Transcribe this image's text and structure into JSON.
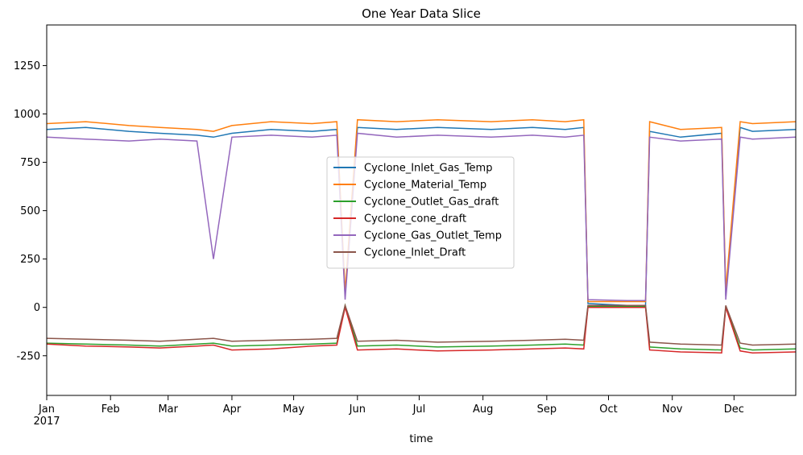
{
  "chart_data": {
    "type": "line",
    "title": "One Year Data Slice",
    "xlabel": "time",
    "ylabel": "",
    "xlim": [
      "2017-01-01",
      "2017-12-31"
    ],
    "ylim": [
      -455,
      1460
    ],
    "y_ticks": [
      -250,
      0,
      250,
      500,
      750,
      1000,
      1250
    ],
    "x_ticks": [
      {
        "date": "2017-01-01",
        "label": "Jan",
        "sublabel": "2017"
      },
      {
        "date": "2017-02-01",
        "label": "Feb"
      },
      {
        "date": "2017-03-01",
        "label": "Mar"
      },
      {
        "date": "2017-04-01",
        "label": "Apr"
      },
      {
        "date": "2017-05-01",
        "label": "May"
      },
      {
        "date": "2017-06-01",
        "label": "Jun"
      },
      {
        "date": "2017-07-01",
        "label": "Jul"
      },
      {
        "date": "2017-08-01",
        "label": "Aug"
      },
      {
        "date": "2017-09-01",
        "label": "Sep"
      },
      {
        "date": "2017-10-01",
        "label": "Oct"
      },
      {
        "date": "2017-11-01",
        "label": "Nov"
      },
      {
        "date": "2017-12-01",
        "label": "Dec"
      }
    ],
    "grid": false,
    "legend_position": "center",
    "series": [
      {
        "name": "Cyclone_Inlet_Gas_Temp",
        "color": "#1f77b4",
        "x": [
          "2017-01-01",
          "2017-01-20",
          "2017-02-10",
          "2017-02-25",
          "2017-03-15",
          "2017-03-23",
          "2017-04-01",
          "2017-04-20",
          "2017-05-10",
          "2017-05-22",
          "2017-05-26",
          "2017-06-01",
          "2017-06-20",
          "2017-07-10",
          "2017-08-05",
          "2017-08-25",
          "2017-09-10",
          "2017-09-19",
          "2017-09-21",
          "2017-10-10",
          "2017-10-19",
          "2017-10-21",
          "2017-11-05",
          "2017-11-25",
          "2017-11-27",
          "2017-12-04",
          "2017-12-10",
          "2017-12-31"
        ],
        "y": [
          920,
          930,
          910,
          900,
          890,
          880,
          900,
          920,
          910,
          920,
          60,
          930,
          920,
          930,
          920,
          930,
          920,
          930,
          20,
          10,
          10,
          910,
          880,
          900,
          60,
          930,
          910,
          920
        ]
      },
      {
        "name": "Cyclone_Material_Temp",
        "color": "#ff7f0e",
        "x": [
          "2017-01-01",
          "2017-01-20",
          "2017-02-10",
          "2017-02-25",
          "2017-03-15",
          "2017-03-23",
          "2017-04-01",
          "2017-04-20",
          "2017-05-10",
          "2017-05-22",
          "2017-05-26",
          "2017-06-01",
          "2017-06-20",
          "2017-07-10",
          "2017-08-05",
          "2017-08-25",
          "2017-09-10",
          "2017-09-19",
          "2017-09-21",
          "2017-10-10",
          "2017-10-19",
          "2017-10-21",
          "2017-11-05",
          "2017-11-25",
          "2017-11-27",
          "2017-12-04",
          "2017-12-10",
          "2017-12-31"
        ],
        "y": [
          950,
          960,
          940,
          930,
          920,
          910,
          940,
          960,
          950,
          960,
          80,
          970,
          960,
          970,
          960,
          970,
          960,
          970,
          30,
          30,
          30,
          960,
          920,
          930,
          90,
          960,
          950,
          960
        ]
      },
      {
        "name": "Cyclone_Outlet_Gas_draft",
        "color": "#2ca02c",
        "x": [
          "2017-01-01",
          "2017-01-20",
          "2017-02-10",
          "2017-02-25",
          "2017-03-15",
          "2017-03-23",
          "2017-04-01",
          "2017-04-20",
          "2017-05-10",
          "2017-05-22",
          "2017-05-26",
          "2017-06-01",
          "2017-06-20",
          "2017-07-10",
          "2017-08-05",
          "2017-08-25",
          "2017-09-10",
          "2017-09-19",
          "2017-09-21",
          "2017-10-10",
          "2017-10-19",
          "2017-10-21",
          "2017-11-05",
          "2017-11-25",
          "2017-11-27",
          "2017-12-04",
          "2017-12-10",
          "2017-12-31"
        ],
        "y": [
          -185,
          -190,
          -195,
          -200,
          -190,
          -185,
          -200,
          -195,
          -190,
          -185,
          10,
          -200,
          -195,
          -205,
          -200,
          -195,
          -190,
          -195,
          5,
          5,
          5,
          -205,
          -215,
          -220,
          5,
          -210,
          -220,
          -215
        ]
      },
      {
        "name": "Cyclone_cone_draft",
        "color": "#d62728",
        "x": [
          "2017-01-01",
          "2017-01-20",
          "2017-02-10",
          "2017-02-25",
          "2017-03-15",
          "2017-03-23",
          "2017-04-01",
          "2017-04-20",
          "2017-05-10",
          "2017-05-22",
          "2017-05-26",
          "2017-06-01",
          "2017-06-20",
          "2017-07-10",
          "2017-08-05",
          "2017-08-25",
          "2017-09-10",
          "2017-09-19",
          "2017-09-21",
          "2017-10-10",
          "2017-10-19",
          "2017-10-21",
          "2017-11-05",
          "2017-11-25",
          "2017-11-27",
          "2017-12-04",
          "2017-12-10",
          "2017-12-31"
        ],
        "y": [
          -190,
          -200,
          -205,
          -210,
          -200,
          -195,
          -220,
          -215,
          -200,
          -195,
          0,
          -220,
          -215,
          -225,
          -220,
          -215,
          -210,
          -215,
          0,
          0,
          0,
          -220,
          -230,
          -235,
          0,
          -225,
          -235,
          -230
        ]
      },
      {
        "name": "Cyclone_Gas_Outlet_Temp",
        "color": "#9467bd",
        "x": [
          "2017-01-01",
          "2017-01-20",
          "2017-02-10",
          "2017-02-25",
          "2017-03-15",
          "2017-03-23",
          "2017-04-01",
          "2017-04-20",
          "2017-05-10",
          "2017-05-22",
          "2017-05-26",
          "2017-06-01",
          "2017-06-20",
          "2017-07-10",
          "2017-08-05",
          "2017-08-25",
          "2017-09-10",
          "2017-09-19",
          "2017-09-21",
          "2017-10-10",
          "2017-10-19",
          "2017-10-21",
          "2017-11-05",
          "2017-11-25",
          "2017-11-27",
          "2017-12-04",
          "2017-12-10",
          "2017-12-31"
        ],
        "y": [
          880,
          870,
          860,
          870,
          860,
          250,
          880,
          890,
          880,
          890,
          40,
          900,
          880,
          890,
          880,
          890,
          880,
          890,
          40,
          35,
          35,
          880,
          860,
          870,
          40,
          880,
          870,
          880
        ]
      },
      {
        "name": "Cyclone_Inlet_Draft",
        "color": "#8c564b",
        "x": [
          "2017-01-01",
          "2017-01-20",
          "2017-02-10",
          "2017-02-25",
          "2017-03-15",
          "2017-03-23",
          "2017-04-01",
          "2017-04-20",
          "2017-05-10",
          "2017-05-22",
          "2017-05-26",
          "2017-06-01",
          "2017-06-20",
          "2017-07-10",
          "2017-08-05",
          "2017-08-25",
          "2017-09-10",
          "2017-09-19",
          "2017-09-21",
          "2017-10-10",
          "2017-10-19",
          "2017-10-21",
          "2017-11-05",
          "2017-11-25",
          "2017-11-27",
          "2017-12-04",
          "2017-12-10",
          "2017-12-31"
        ],
        "y": [
          -160,
          -165,
          -170,
          -175,
          -165,
          -160,
          -175,
          -170,
          -165,
          -160,
          10,
          -175,
          -170,
          -180,
          -175,
          -170,
          -165,
          -170,
          10,
          10,
          10,
          -180,
          -190,
          -195,
          10,
          -185,
          -195,
          -190
        ]
      }
    ]
  }
}
